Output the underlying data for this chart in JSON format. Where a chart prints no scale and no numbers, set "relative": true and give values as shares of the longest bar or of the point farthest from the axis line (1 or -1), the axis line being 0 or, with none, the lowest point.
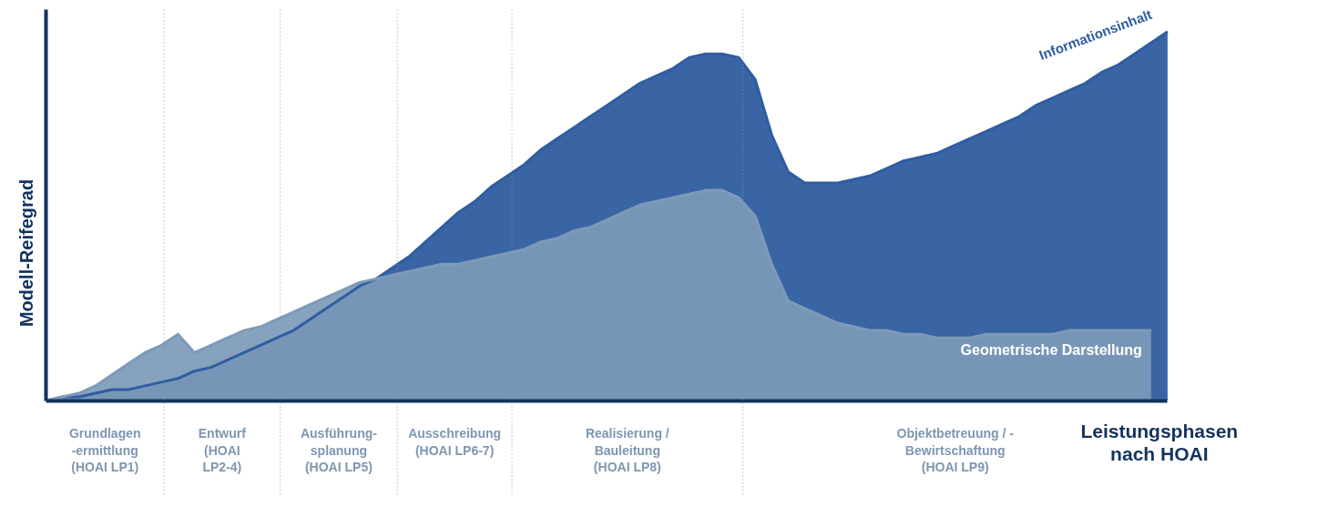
{
  "chart_data": {
    "type": "area",
    "relative": true,
    "xlabel": "Leistungsphasen\nnach HOAI",
    "ylabel": "Modell-Reifegrad",
    "grid": false,
    "categories": [
      null,
      null,
      null,
      null,
      null,
      null,
      null,
      null,
      null,
      null,
      null,
      null,
      null,
      null,
      null,
      null,
      null,
      null,
      null,
      null,
      null,
      null,
      null,
      null,
      null,
      null,
      null,
      null,
      null,
      null,
      null,
      null,
      null,
      null,
      null,
      null,
      null,
      null,
      null,
      null,
      null,
      null,
      null,
      null,
      null,
      null,
      null,
      null,
      null,
      null,
      null,
      null,
      null,
      null,
      null,
      null,
      null,
      null,
      null,
      null,
      null,
      null,
      null,
      null,
      null,
      null,
      null,
      null,
      null
    ],
    "annotations": [
      "Grundlagen\n-ermittlung\n(HOAI LP1)",
      "Entwurf\n(HOAI\nLP2-4)",
      "Ausführung-\nsplanung\n(HOAI LP5)",
      "Ausschreibung\n(HOAI LP6-7)",
      "Realisierung /\nBauleitung\n(HOAI LP8)",
      "Objektbetreuung / -\nBewirtschaftung\n(HOAI LP9)"
    ],
    "series": [
      {
        "name": "Informationsinhalt",
        "color": "#2f5da0",
        "values": [
          0,
          0.01,
          0.01,
          0.02,
          0.03,
          0.03,
          0.04,
          0.05,
          0.06,
          0.08,
          0.09,
          0.11,
          0.13,
          0.15,
          0.17,
          0.19,
          0.22,
          0.25,
          0.28,
          0.31,
          0.33,
          0.36,
          0.39,
          0.43,
          0.47,
          0.51,
          0.54,
          0.58,
          0.61,
          0.64,
          0.68,
          0.71,
          0.74,
          0.77,
          0.8,
          0.83,
          0.86,
          0.88,
          0.9,
          0.93,
          0.94,
          0.94,
          0.93,
          0.87,
          0.72,
          0.62,
          0.59,
          0.59,
          0.59,
          0.6,
          0.61,
          0.63,
          0.65,
          0.66,
          0.67,
          0.69,
          0.71,
          0.73,
          0.75,
          0.77,
          0.8,
          0.82,
          0.84,
          0.86,
          0.89,
          0.91,
          0.94,
          0.97,
          1.0
        ]
      },
      {
        "name": "Geometrische Darstellung",
        "color": "#7d9ab8",
        "values": [
          0,
          0.01,
          0.02,
          0.04,
          0.07,
          0.1,
          0.13,
          0.15,
          0.18,
          0.13,
          0.15,
          0.17,
          0.19,
          0.2,
          0.22,
          0.24,
          0.26,
          0.28,
          0.3,
          0.32,
          0.33,
          0.34,
          0.35,
          0.36,
          0.37,
          0.37,
          0.38,
          0.39,
          0.4,
          0.41,
          0.43,
          0.44,
          0.46,
          0.47,
          0.49,
          0.51,
          0.53,
          0.54,
          0.55,
          0.56,
          0.57,
          0.57,
          0.55,
          0.5,
          0.37,
          0.27,
          0.25,
          0.23,
          0.21,
          0.2,
          0.19,
          0.19,
          0.18,
          0.18,
          0.17,
          0.17,
          0.17,
          0.18,
          0.18,
          0.18,
          0.18,
          0.18,
          0.19,
          0.19,
          0.19,
          0.19,
          0.19,
          0.19,
          null
        ]
      }
    ]
  }
}
